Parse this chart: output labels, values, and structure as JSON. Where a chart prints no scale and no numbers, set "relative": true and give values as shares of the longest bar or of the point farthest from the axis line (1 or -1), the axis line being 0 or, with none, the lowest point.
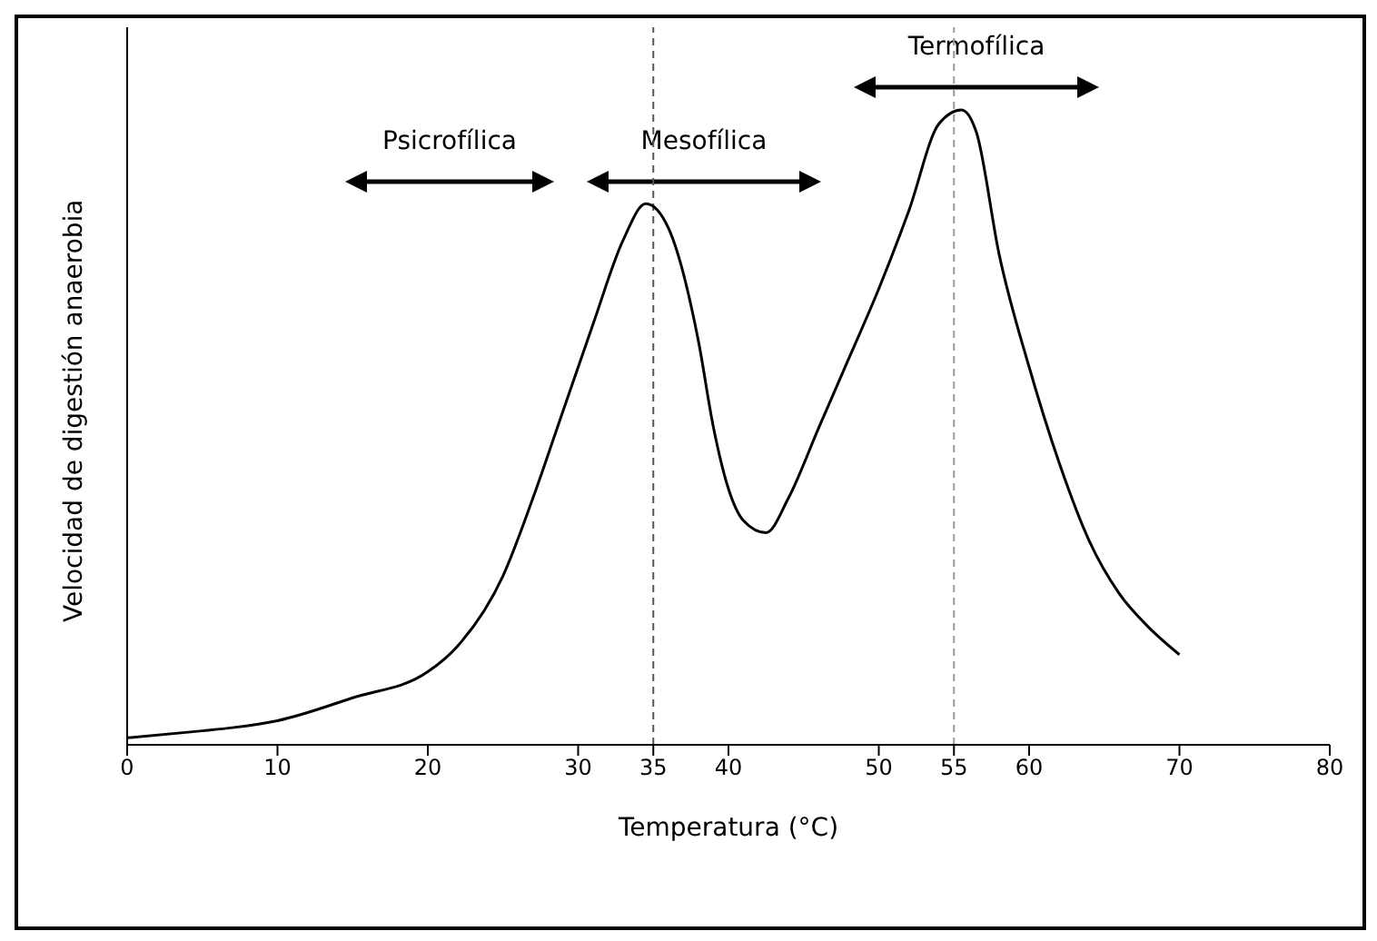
{
  "chart_data": {
    "type": "line",
    "relative": true,
    "xlabel": "Temperatura (°C)",
    "ylabel": "Velocidad  de digestión anaerobia",
    "x": [
      0,
      5,
      7,
      10,
      15,
      20,
      22,
      25,
      27,
      29,
      31,
      33,
      34.5,
      36,
      38,
      39,
      40,
      41,
      42.5,
      44,
      46,
      48,
      50,
      52,
      54,
      55.5,
      56.5,
      58,
      60,
      62,
      64,
      66,
      68,
      70
    ],
    "xlim": [
      0,
      80
    ],
    "xticks": [
      0,
      10,
      20,
      30,
      35,
      40,
      50,
      55,
      60,
      70,
      80
    ],
    "series": [
      {
        "color": "#000000",
        "values": [
          0.011,
          0.022,
          0.027,
          0.038,
          0.074,
          0.115,
          0.156,
          0.266,
          0.389,
          0.526,
          0.663,
          0.795,
          0.852,
          0.814,
          0.636,
          0.5,
          0.403,
          0.353,
          0.334,
          0.389,
          0.499,
          0.608,
          0.718,
          0.841,
          0.978,
          1,
          0.964,
          0.773,
          0.595,
          0.444,
          0.321,
          0.238,
          0.184,
          0.142
        ]
      }
    ],
    "ref_lines": [
      {
        "axis": "x",
        "value": 35,
        "color": "#555555",
        "line_style": "dashed"
      },
      {
        "axis": "x",
        "value": 55,
        "color": "#999999",
        "line_style": "dashed"
      }
    ],
    "annotations": [
      "Psicrofílica",
      "Mesofílica",
      "Termofílica"
    ],
    "grid": false,
    "legend": false,
    "marker": "none",
    "line_style": "solid"
  }
}
